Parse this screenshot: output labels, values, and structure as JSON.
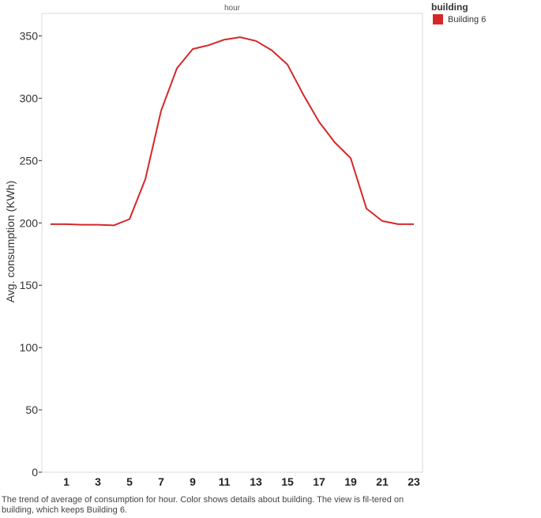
{
  "chart_data": {
    "type": "line",
    "header": "hour",
    "ylabel": "Avg. consumption (KWh)",
    "ylim": [
      0,
      370
    ],
    "yticks": [
      0,
      50,
      100,
      150,
      200,
      250,
      300,
      350
    ],
    "xlim": [
      0,
      23
    ],
    "xticks": [
      1,
      3,
      5,
      7,
      9,
      11,
      13,
      15,
      17,
      19,
      21,
      23
    ],
    "grid": false,
    "legend_position": "top-right",
    "series": [
      {
        "name": "Building 6",
        "color": "#d62728",
        "x": [
          0,
          1,
          2,
          3,
          4,
          5,
          6,
          7,
          8,
          9,
          10,
          11,
          12,
          13,
          14,
          15,
          16,
          17,
          18,
          19,
          20,
          21,
          22,
          23
        ],
        "values": [
          199,
          199,
          198.5,
          198.5,
          198,
          203,
          235,
          290,
          324,
          339.5,
          342.5,
          347,
          349,
          346,
          338.5,
          327,
          303,
          281,
          264.5,
          252,
          211.5,
          201.5,
          199,
          199
        ]
      }
    ]
  },
  "legend": {
    "title": "building",
    "items": [
      {
        "label": "Building 6",
        "color": "#d62728"
      }
    ]
  },
  "caption": "The trend of average of consumption for hour.  Color shows details about building. The view is fil-tered on building, which keeps Building 6."
}
